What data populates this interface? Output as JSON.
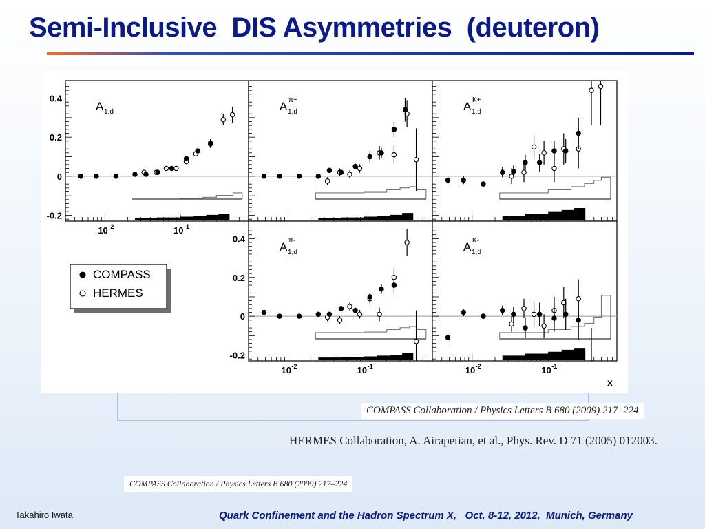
{
  "slide": {
    "title": "Semi-Inclusive  DIS Asymmetries  (deuteron)",
    "ref_compass": "COMPASS Collaboration / Physics Letters B 680 (2009) 217–224",
    "ref_hermes": "HERMES Collaboration, A. Airapetian, et al., Phys. Rev. D 71 (2005) 012003.",
    "ref_compass_small": "COMPASS Collaboration / Physics Letters B 680 (2009) 217–224",
    "author": "Takahiro Iwata",
    "conference": "Quark Confinement and the Hadron Spectrum X,   Oct. 8-12, 2012,  Munich, Germany"
  },
  "chart_data": {
    "type": "scatter",
    "xscale": "log",
    "xlim": [
      0.003,
      0.8
    ],
    "ylim": [
      -0.23,
      0.49
    ],
    "xlabel": "x",
    "x_tick_labels": [
      {
        "base": "10",
        "exp": "-2",
        "x": 0.01
      },
      {
        "base": "10",
        "exp": "-1",
        "x": 0.1
      }
    ],
    "y_tick_labels": [
      {
        "text": "0.4",
        "y": 0.4
      },
      {
        "text": "0.2",
        "y": 0.2
      },
      {
        "text": "0",
        "y": 0
      },
      {
        "text": "-0.2",
        "y": -0.2
      }
    ],
    "legend": {
      "entries": [
        {
          "label": "COMPASS",
          "marker": "filled-circle"
        },
        {
          "label": "HERMES",
          "marker": "open-circle"
        }
      ]
    },
    "colors": {
      "marker": "#000000",
      "error_bar": "#000000",
      "zero_line": "#999999",
      "syst_outline": "#777777"
    },
    "panels": [
      {
        "id": "A1d",
        "label_base": "A",
        "label_sub": "1,d",
        "label_sup": "",
        "y_ticks_shown": true,
        "x_ticks_shown": true,
        "compass": [
          [
            0.0048,
            0.0,
            0.004
          ],
          [
            0.0077,
            0.0,
            0.004
          ],
          [
            0.014,
            0.0,
            0.004
          ],
          [
            0.025,
            0.01,
            0.004
          ],
          [
            0.035,
            0.01,
            0.006
          ],
          [
            0.05,
            0.02,
            0.007
          ],
          [
            0.077,
            0.04,
            0.008
          ],
          [
            0.12,
            0.09,
            0.01
          ],
          [
            0.17,
            0.13,
            0.012
          ],
          [
            0.25,
            0.17,
            0.02
          ]
        ],
        "hermes": [
          [
            0.033,
            0.02,
            0.006
          ],
          [
            0.048,
            0.02,
            0.007
          ],
          [
            0.065,
            0.04,
            0.008
          ],
          [
            0.088,
            0.04,
            0.009
          ],
          [
            0.12,
            0.075,
            0.01
          ],
          [
            0.16,
            0.115,
            0.012
          ],
          [
            0.25,
            0.165,
            0.02
          ],
          [
            0.37,
            0.29,
            0.03
          ],
          [
            0.49,
            0.315,
            0.04
          ]
        ],
        "syst_compass": [
          [
            0.025,
            0.01
          ],
          [
            0.05,
            0.012
          ],
          [
            0.1,
            0.016
          ],
          [
            0.15,
            0.02
          ],
          [
            0.22,
            0.025
          ],
          [
            0.32,
            0.03
          ]
        ],
        "syst_hermes": [
          [
            0.023,
            0.03
          ],
          [
            0.1,
            0.033
          ],
          [
            0.2,
            0.036
          ],
          [
            0.3,
            0.042
          ],
          [
            0.5,
            0.05
          ],
          [
            0.66,
            0.05
          ]
        ]
      },
      {
        "id": "A1d_pi_plus",
        "label_base": "A",
        "label_sub": "1,d",
        "label_sup": "π+",
        "y_ticks_shown": false,
        "x_ticks_shown": false,
        "compass": [
          [
            0.0048,
            0.0,
            0.006
          ],
          [
            0.0077,
            0.0,
            0.006
          ],
          [
            0.014,
            0.0,
            0.006
          ],
          [
            0.025,
            0.0,
            0.007
          ],
          [
            0.035,
            0.03,
            0.01
          ],
          [
            0.05,
            0.02,
            0.012
          ],
          [
            0.077,
            0.05,
            0.015
          ],
          [
            0.12,
            0.1,
            0.02
          ],
          [
            0.17,
            0.12,
            0.025
          ],
          [
            0.25,
            0.24,
            0.04
          ],
          [
            0.35,
            0.34,
            0.06
          ]
        ],
        "hermes": [
          [
            0.033,
            -0.025,
            0.02
          ],
          [
            0.048,
            0.02,
            0.02
          ],
          [
            0.065,
            0.01,
            0.02
          ],
          [
            0.088,
            0.04,
            0.022
          ],
          [
            0.12,
            0.1,
            0.03
          ],
          [
            0.16,
            0.12,
            0.035
          ],
          [
            0.25,
            0.11,
            0.045
          ],
          [
            0.37,
            0.32,
            0.07
          ],
          [
            0.49,
            0.085,
            0.16
          ]
        ],
        "syst_compass": [
          [
            0.025,
            0.01
          ],
          [
            0.05,
            0.012
          ],
          [
            0.1,
            0.016
          ],
          [
            0.15,
            0.02
          ],
          [
            0.22,
            0.025
          ],
          [
            0.32,
            0.035
          ]
        ],
        "syst_hermes": [
          [
            0.023,
            0.05
          ],
          [
            0.1,
            0.052
          ],
          [
            0.2,
            0.06
          ],
          [
            0.3,
            0.066
          ],
          [
            0.4,
            0.07
          ],
          [
            0.5,
            0.06
          ],
          [
            0.66,
            0.06
          ]
        ]
      },
      {
        "id": "A1d_K_plus",
        "label_base": "A",
        "label_sub": "1,d",
        "label_sup": "K+",
        "y_ticks_shown": false,
        "x_ticks_shown": false,
        "compass": [
          [
            0.0048,
            -0.02,
            0.02
          ],
          [
            0.0077,
            -0.02,
            0.02
          ],
          [
            0.014,
            -0.04,
            0.015
          ],
          [
            0.025,
            0.02,
            0.025
          ],
          [
            0.035,
            0.025,
            0.03
          ],
          [
            0.05,
            0.07,
            0.04
          ],
          [
            0.077,
            0.07,
            0.045
          ],
          [
            0.12,
            0.13,
            0.05
          ],
          [
            0.17,
            0.13,
            0.06
          ],
          [
            0.25,
            0.22,
            0.08
          ]
        ],
        "hermes": [
          [
            0.033,
            0.0,
            0.04
          ],
          [
            0.048,
            0.02,
            0.05
          ],
          [
            0.065,
            0.15,
            0.06
          ],
          [
            0.088,
            0.12,
            0.06
          ],
          [
            0.12,
            0.04,
            0.07
          ],
          [
            0.16,
            0.14,
            0.08
          ],
          [
            0.25,
            0.14,
            0.1
          ],
          [
            0.37,
            0.44,
            0.18
          ],
          [
            0.49,
            0.46,
            0.2
          ]
        ],
        "syst_compass": [
          [
            0.025,
            0.02
          ],
          [
            0.05,
            0.03
          ],
          [
            0.1,
            0.04
          ],
          [
            0.15,
            0.05
          ],
          [
            0.22,
            0.06
          ]
        ],
        "syst_hermes": [
          [
            0.023,
            0.05
          ],
          [
            0.1,
            0.06
          ],
          [
            0.2,
            0.07
          ],
          [
            0.3,
            0.08
          ],
          [
            0.4,
            0.09
          ],
          [
            0.5,
            0.1
          ],
          [
            0.66,
            0.1
          ]
        ]
      },
      {
        "id": "A1d_pi_minus",
        "label_base": "A",
        "label_sub": "1,d",
        "label_sup": "π-",
        "y_ticks_shown": true,
        "x_ticks_shown": true,
        "compass": [
          [
            0.0048,
            0.02,
            0.006
          ],
          [
            0.0077,
            0.0,
            0.006
          ],
          [
            0.014,
            0.0,
            0.006
          ],
          [
            0.025,
            0.01,
            0.007
          ],
          [
            0.035,
            0.01,
            0.01
          ],
          [
            0.05,
            0.04,
            0.012
          ],
          [
            0.077,
            0.03,
            0.015
          ],
          [
            0.12,
            0.1,
            0.02
          ],
          [
            0.17,
            0.14,
            0.025
          ],
          [
            0.25,
            0.16,
            0.04
          ]
        ],
        "hermes": [
          [
            0.033,
            -0.005,
            0.02
          ],
          [
            0.048,
            -0.02,
            0.02
          ],
          [
            0.065,
            0.05,
            0.02
          ],
          [
            0.088,
            0.01,
            0.022
          ],
          [
            0.12,
            0.09,
            0.03
          ],
          [
            0.16,
            0.01,
            0.035
          ],
          [
            0.25,
            0.2,
            0.045
          ],
          [
            0.37,
            0.38,
            0.07
          ],
          [
            0.49,
            -0.13,
            0.16
          ]
        ],
        "syst_compass": [
          [
            0.025,
            0.01
          ],
          [
            0.05,
            0.012
          ],
          [
            0.1,
            0.016
          ],
          [
            0.15,
            0.02
          ],
          [
            0.22,
            0.025
          ],
          [
            0.32,
            0.035
          ]
        ],
        "syst_hermes": [
          [
            0.023,
            0.05
          ],
          [
            0.1,
            0.052
          ],
          [
            0.2,
            0.06
          ],
          [
            0.3,
            0.066
          ],
          [
            0.4,
            0.07
          ],
          [
            0.5,
            0.06
          ],
          [
            0.66,
            0.06
          ]
        ]
      },
      {
        "id": "A1d_K_minus",
        "label_base": "A",
        "label_sub": "1,d",
        "label_sup": "K-",
        "y_ticks_shown": false,
        "x_ticks_shown": true,
        "compass": [
          [
            0.0048,
            -0.11,
            0.025
          ],
          [
            0.0077,
            0.02,
            0.02
          ],
          [
            0.014,
            0.0,
            0.015
          ],
          [
            0.025,
            0.03,
            0.025
          ],
          [
            0.035,
            0.01,
            0.04
          ],
          [
            0.05,
            -0.06,
            0.05
          ],
          [
            0.077,
            0.01,
            0.06
          ],
          [
            0.12,
            -0.01,
            0.07
          ],
          [
            0.17,
            0.01,
            0.08
          ],
          [
            0.25,
            -0.02,
            0.1
          ]
        ],
        "hermes": [
          [
            0.033,
            -0.04,
            0.04
          ],
          [
            0.048,
            0.04,
            0.05
          ],
          [
            0.065,
            0.01,
            0.06
          ],
          [
            0.088,
            -0.05,
            0.06
          ],
          [
            0.12,
            0.03,
            0.07
          ],
          [
            0.16,
            0.07,
            0.08
          ],
          [
            0.25,
            0.09,
            0.1
          ],
          [
            0.37,
            -0.24,
            0.18
          ]
        ],
        "syst_compass": [
          [
            0.025,
            0.02
          ],
          [
            0.05,
            0.03
          ],
          [
            0.1,
            0.04
          ],
          [
            0.15,
            0.05
          ],
          [
            0.22,
            0.06
          ]
        ],
        "syst_hermes": [
          [
            0.023,
            0.05
          ],
          [
            0.1,
            0.06
          ],
          [
            0.2,
            0.07
          ],
          [
            0.3,
            0.08
          ],
          [
            0.4,
            0.1
          ],
          [
            0.5,
            0.17
          ],
          [
            0.66,
            0.17
          ]
        ]
      }
    ]
  }
}
